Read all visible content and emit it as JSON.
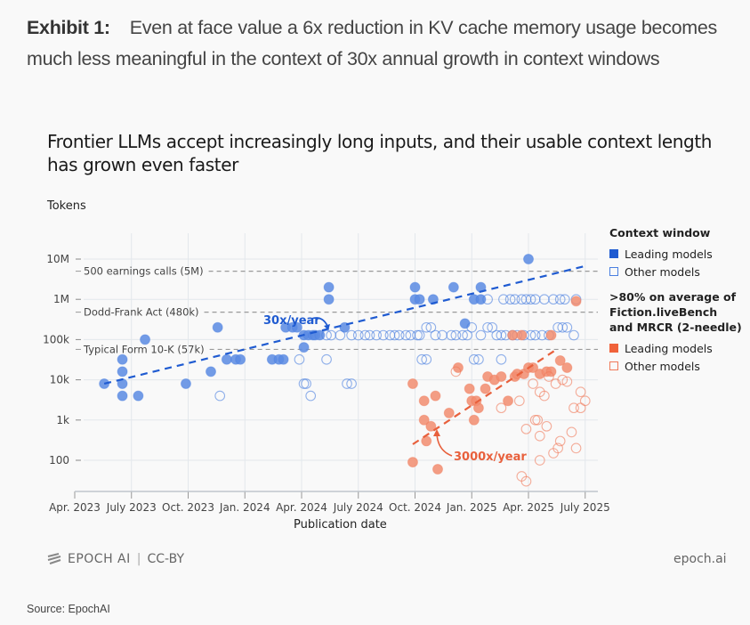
{
  "exhibit": {
    "label": "Exhibit 1:",
    "caption": "Even at face value a 6x reduction in KV cache memory usage becomes much less meaningful in the context of 30x annual growth in context windows"
  },
  "footer": {
    "brand": "EPOCH AI",
    "license": "CC-BY",
    "site": "epoch.ai",
    "source": "Source: EpochAI"
  },
  "colors": {
    "blue": "#4a7fe0",
    "blue_line": "#1f5bd1",
    "orange": "#f07a5a",
    "orange_line": "#e8603c",
    "grid": "#e3e8ec",
    "ref_line": "#9a9a9a"
  },
  "chart_data": {
    "type": "scatter",
    "title": "Frontier LLMs accept increasingly long inputs, and their usable context length has grown even faster",
    "xlabel": "Publication date",
    "ylabel": "Tokens",
    "yscale": "log",
    "ylim": [
      20,
      20000000
    ],
    "xlim": [
      2023.25,
      2025.6
    ],
    "x_ticks": [
      {
        "value": 2023.25,
        "label": "Apr. 2023"
      },
      {
        "value": 2023.5,
        "label": "July 2023"
      },
      {
        "value": 2023.75,
        "label": "Oct. 2023"
      },
      {
        "value": 2024.0,
        "label": "Jan. 2024"
      },
      {
        "value": 2024.25,
        "label": "Apr. 2024"
      },
      {
        "value": 2024.5,
        "label": "July 2024"
      },
      {
        "value": 2024.75,
        "label": "Oct. 2024"
      },
      {
        "value": 2025.0,
        "label": "Jan. 2025"
      },
      {
        "value": 2025.25,
        "label": "Apr. 2025"
      },
      {
        "value": 2025.5,
        "label": "July 2025"
      }
    ],
    "y_ticks": [
      {
        "value": 10000000,
        "label": "10M"
      },
      {
        "value": 1000000,
        "label": "1M"
      },
      {
        "value": 100000,
        "label": "100k"
      },
      {
        "value": 10000,
        "label": "10k"
      },
      {
        "value": 1000,
        "label": "1k"
      },
      {
        "value": 100,
        "label": "100"
      }
    ],
    "reference_lines": [
      {
        "value": 5000000,
        "label": "500 earnings calls (5M)"
      },
      {
        "value": 480000,
        "label": "Dodd-Frank Act (480k)"
      },
      {
        "value": 57000,
        "label": "Typical Form 10-K (57k)"
      }
    ],
    "trends": [
      {
        "name": "Context window trend",
        "label": "30x/year",
        "series": "blue",
        "x": [
          2023.38,
          2025.49
        ],
        "y": [
          8000,
          6500000
        ]
      },
      {
        "name": "Usable context trend",
        "label": "3000x/year",
        "series": "orange",
        "x": [
          2024.74,
          2025.38
        ],
        "y": [
          250,
          60000
        ]
      }
    ],
    "legend": {
      "position": "right",
      "groups": [
        {
          "title": "Context window",
          "items": [
            {
              "label": "Leading models",
              "style": "filled",
              "series": "blue"
            },
            {
              "label": "Other models",
              "style": "open",
              "series": "blue"
            }
          ]
        },
        {
          "title": ">80% on average of Fiction.liveBench and MRCR (2-needle)",
          "items": [
            {
              "label": "Leading models",
              "style": "filled",
              "series": "orange"
            },
            {
              "label": "Other models",
              "style": "open",
              "series": "orange"
            }
          ]
        }
      ]
    },
    "series": [
      {
        "name": "Context window - Leading models",
        "color": "blue",
        "style": "filled",
        "points": [
          [
            2023.38,
            8000
          ],
          [
            2023.46,
            32000
          ],
          [
            2023.46,
            16000
          ],
          [
            2023.46,
            8000
          ],
          [
            2023.46,
            4000
          ],
          [
            2023.53,
            4000
          ],
          [
            2023.56,
            100000
          ],
          [
            2023.74,
            8000
          ],
          [
            2023.85,
            16000
          ],
          [
            2023.88,
            200000
          ],
          [
            2023.92,
            32000
          ],
          [
            2023.96,
            32000
          ],
          [
            2023.98,
            32000
          ],
          [
            2024.12,
            32000
          ],
          [
            2024.15,
            32000
          ],
          [
            2024.17,
            32000
          ],
          [
            2024.18,
            200000
          ],
          [
            2024.21,
            200000
          ],
          [
            2024.23,
            200000
          ],
          [
            2024.26,
            128000
          ],
          [
            2024.28,
            128000
          ],
          [
            2024.3,
            128000
          ],
          [
            2024.31,
            128000
          ],
          [
            2024.26,
            64000
          ],
          [
            2024.33,
            128000
          ],
          [
            2024.37,
            1000000
          ],
          [
            2024.37,
            2000000
          ],
          [
            2024.44,
            200000
          ],
          [
            2024.75,
            2000000
          ],
          [
            2024.75,
            1000000
          ],
          [
            2024.77,
            1000000
          ],
          [
            2024.83,
            1000000
          ],
          [
            2024.92,
            2000000
          ],
          [
            2024.97,
            250000
          ],
          [
            2025.01,
            1000000
          ],
          [
            2025.04,
            1000000
          ],
          [
            2025.04,
            2000000
          ],
          [
            2025.25,
            10000000
          ]
        ]
      },
      {
        "name": "Context window - Other models",
        "color": "blue",
        "style": "open",
        "points": [
          [
            2023.89,
            4000
          ],
          [
            2024.24,
            32000
          ],
          [
            2024.26,
            8000
          ],
          [
            2024.27,
            8000
          ],
          [
            2024.29,
            4000
          ],
          [
            2024.36,
            32000
          ],
          [
            2024.45,
            8000
          ],
          [
            2024.47,
            8000
          ],
          [
            2024.36,
            128000
          ],
          [
            2024.38,
            128000
          ],
          [
            2024.42,
            128000
          ],
          [
            2024.47,
            128000
          ],
          [
            2024.5,
            128000
          ],
          [
            2024.53,
            128000
          ],
          [
            2024.55,
            128000
          ],
          [
            2024.58,
            128000
          ],
          [
            2024.61,
            128000
          ],
          [
            2024.64,
            128000
          ],
          [
            2024.66,
            128000
          ],
          [
            2024.68,
            128000
          ],
          [
            2024.71,
            128000
          ],
          [
            2024.73,
            128000
          ],
          [
            2024.76,
            128000
          ],
          [
            2024.77,
            128000
          ],
          [
            2024.8,
            200000
          ],
          [
            2024.82,
            200000
          ],
          [
            2024.84,
            128000
          ],
          [
            2024.87,
            128000
          ],
          [
            2024.91,
            128000
          ],
          [
            2024.93,
            128000
          ],
          [
            2024.96,
            128000
          ],
          [
            2024.98,
            128000
          ],
          [
            2025.0,
            200000
          ],
          [
            2025.04,
            128000
          ],
          [
            2025.07,
            200000
          ],
          [
            2025.09,
            200000
          ],
          [
            2025.11,
            128000
          ],
          [
            2025.13,
            128000
          ],
          [
            2025.15,
            128000
          ],
          [
            2025.18,
            128000
          ],
          [
            2025.2,
            128000
          ],
          [
            2025.23,
            128000
          ],
          [
            2025.26,
            128000
          ],
          [
            2025.28,
            128000
          ],
          [
            2025.31,
            128000
          ],
          [
            2025.34,
            128000
          ],
          [
            2025.38,
            200000
          ],
          [
            2025.4,
            200000
          ],
          [
            2025.42,
            200000
          ],
          [
            2025.45,
            128000
          ],
          [
            2025.07,
            1000000
          ],
          [
            2025.14,
            1000000
          ],
          [
            2025.17,
            1000000
          ],
          [
            2025.19,
            1000000
          ],
          [
            2025.22,
            1000000
          ],
          [
            2025.24,
            1000000
          ],
          [
            2025.26,
            1000000
          ],
          [
            2025.28,
            1000000
          ],
          [
            2025.32,
            1000000
          ],
          [
            2025.36,
            1000000
          ],
          [
            2025.39,
            1000000
          ],
          [
            2025.41,
            1000000
          ],
          [
            2025.46,
            1000000
          ],
          [
            2025.01,
            32000
          ],
          [
            2025.03,
            32000
          ],
          [
            2025.13,
            32000
          ],
          [
            2024.78,
            32000
          ],
          [
            2024.8,
            32000
          ]
        ]
      },
      {
        "name": "Usable context - Leading models",
        "color": "orange",
        "style": "filled",
        "points": [
          [
            2024.74,
            8000
          ],
          [
            2024.74,
            90
          ],
          [
            2024.79,
            3000
          ],
          [
            2024.79,
            1000
          ],
          [
            2024.8,
            300
          ],
          [
            2024.82,
            700
          ],
          [
            2024.84,
            4000
          ],
          [
            2024.85,
            60
          ],
          [
            2024.9,
            1500
          ],
          [
            2024.94,
            20000
          ],
          [
            2024.99,
            6000
          ],
          [
            2025.0,
            3000
          ],
          [
            2025.01,
            1000
          ],
          [
            2025.02,
            3000
          ],
          [
            2025.03,
            2000
          ],
          [
            2025.06,
            6000
          ],
          [
            2025.07,
            12000
          ],
          [
            2025.1,
            10000
          ],
          [
            2025.13,
            12000
          ],
          [
            2025.16,
            3000
          ],
          [
            2025.19,
            12000
          ],
          [
            2025.2,
            14000
          ],
          [
            2025.23,
            14000
          ],
          [
            2025.25,
            20000
          ],
          [
            2025.27,
            20000
          ],
          [
            2025.3,
            14000
          ],
          [
            2025.33,
            16000
          ],
          [
            2025.35,
            16000
          ],
          [
            2025.39,
            30000
          ],
          [
            2025.42,
            20000
          ],
          [
            2025.18,
            128000
          ],
          [
            2025.22,
            128000
          ],
          [
            2025.35,
            128000
          ],
          [
            2025.46,
            900000
          ]
        ]
      },
      {
        "name": "Usable context - Other models",
        "color": "orange",
        "style": "open",
        "points": [
          [
            2024.93,
            16000
          ],
          [
            2025.13,
            2000
          ],
          [
            2025.21,
            3000
          ],
          [
            2025.24,
            600
          ],
          [
            2025.27,
            8000
          ],
          [
            2025.3,
            5000
          ],
          [
            2025.32,
            4000
          ],
          [
            2025.34,
            12000
          ],
          [
            2025.28,
            1000
          ],
          [
            2025.29,
            1000
          ],
          [
            2025.3,
            400
          ],
          [
            2025.33,
            700
          ],
          [
            2025.4,
            10000
          ],
          [
            2025.42,
            9000
          ],
          [
            2025.37,
            8000
          ],
          [
            2025.45,
            2000
          ],
          [
            2025.48,
            2000
          ],
          [
            2025.36,
            150
          ],
          [
            2025.38,
            200
          ],
          [
            2025.39,
            300
          ],
          [
            2025.3,
            100
          ],
          [
            2025.22,
            40
          ],
          [
            2025.24,
            30
          ],
          [
            2025.44,
            500
          ],
          [
            2025.46,
            200
          ],
          [
            2025.48,
            5000
          ],
          [
            2025.5,
            3000
          ]
        ]
      }
    ]
  }
}
